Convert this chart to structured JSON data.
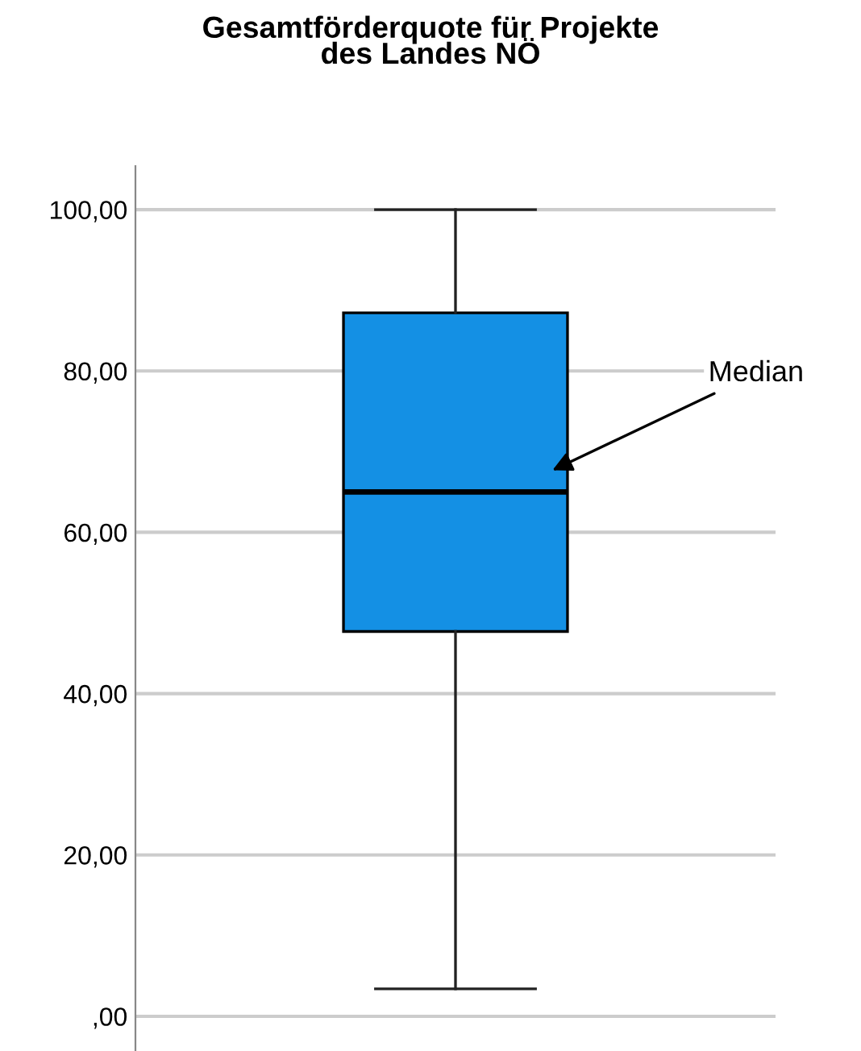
{
  "chart_data": {
    "type": "box",
    "title": "Gesamtförderquote für Projekte\ndes Landes NÖ",
    "categories": [
      null
    ],
    "series": [
      {
        "color": "#1490e4",
        "boxes": [
          {
            "low": 3.4,
            "q1": 47.7,
            "median": 65,
            "q3": 87.2,
            "high": 100
          }
        ]
      }
    ],
    "ylim": [
      -4.3,
      105.4
    ],
    "yticks": [
      {
        "value": 0,
        "label": ",00"
      },
      {
        "value": 20,
        "label": "20,00"
      },
      {
        "value": 40,
        "label": "40,00"
      },
      {
        "value": 60,
        "label": "60,00"
      },
      {
        "value": 80,
        "label": "80,00"
      },
      {
        "value": 100,
        "label": "100,00"
      }
    ],
    "grid": "y",
    "tick_labels": "y",
    "annotations": [
      "Median"
    ]
  }
}
